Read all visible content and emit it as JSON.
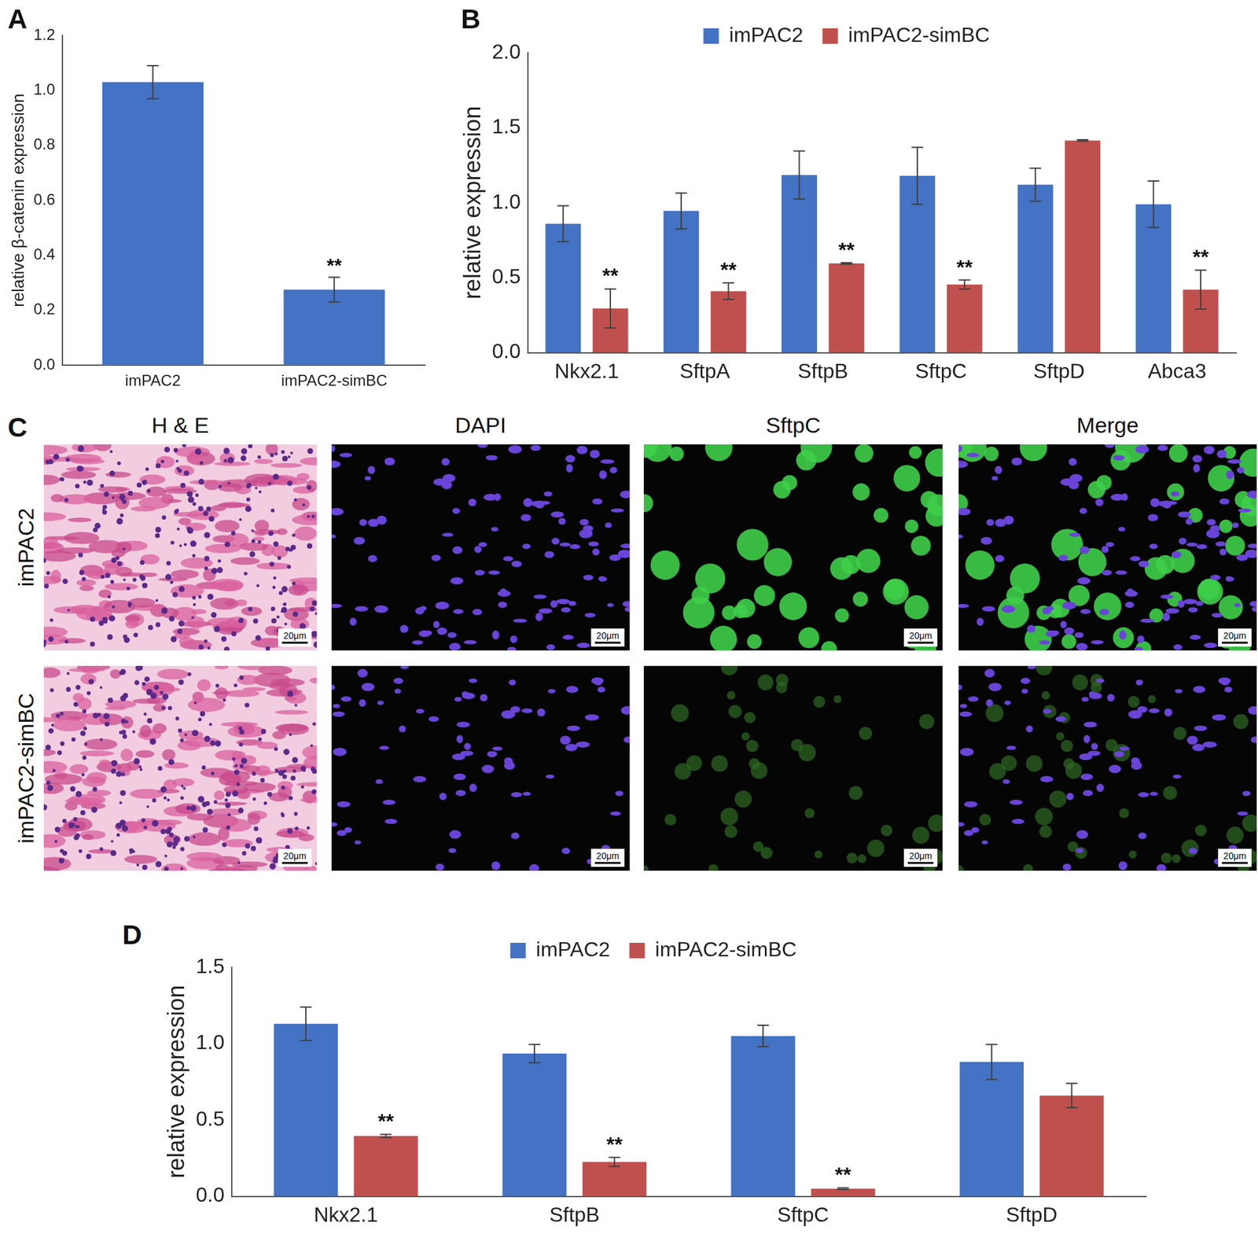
{
  "chart_data": [
    {
      "type": "bar",
      "panel_label": "A",
      "y_label": "relative β-catenin expression",
      "categories": [
        "imPAC2",
        "imPAC2-simBC"
      ],
      "values": [
        1.03,
        0.275
      ],
      "errors": [
        0.06,
        0.045
      ],
      "significance": [
        null,
        "**"
      ],
      "color": "#4472c4",
      "ylim": [
        0,
        1.2
      ],
      "yticks": [
        {
          "value": 0,
          "label": "0.0"
        },
        0.2,
        0.4,
        0.6,
        0.8,
        {
          "value": 1,
          "label": "1.0"
        },
        1.2
      ],
      "grid": false
    },
    {
      "type": "bar",
      "panel_label": "B",
      "y_label": "relative expression",
      "categories": [
        "Nkx2.1",
        "SftpA",
        "SftpB",
        "SftpC",
        "SftpD",
        "Abca3"
      ],
      "series": [
        {
          "name": "imPAC2",
          "color": "#4472c4",
          "values": [
            0.86,
            0.945,
            1.185,
            1.18,
            1.12,
            0.99
          ],
          "errors": [
            0.12,
            0.12,
            0.16,
            0.19,
            0.11,
            0.155
          ]
        },
        {
          "name": "imPAC2-simBC",
          "color": "#c0504d",
          "values": [
            0.295,
            0.41,
            0.595,
            0.455,
            1.415,
            0.42
          ],
          "errors": [
            0.13,
            0.055,
            0.005,
            0.03,
            0.005,
            0.13
          ],
          "significance": [
            "**",
            "**",
            "**",
            "**",
            null,
            "**"
          ]
        }
      ],
      "ylim": [
        0,
        2
      ],
      "yticks": [
        {
          "value": 0,
          "label": "0.0"
        },
        0.5,
        {
          "value": 1,
          "label": "1.0"
        },
        1.5,
        {
          "value": 2,
          "label": "2.0"
        }
      ],
      "grid": false,
      "legend": "top"
    },
    {
      "type": "bar",
      "panel_label": "D",
      "y_label": "relative expression",
      "categories": [
        "Nkx2.1",
        "SftpB",
        "SftpC",
        "SftpD"
      ],
      "series": [
        {
          "name": "imPAC2",
          "color": "#4472c4",
          "values": [
            1.13,
            0.935,
            1.05,
            0.88
          ],
          "errors": [
            0.11,
            0.06,
            0.07,
            0.115
          ]
        },
        {
          "name": "imPAC2-simBC",
          "color": "#c0504d",
          "values": [
            0.395,
            0.225,
            0.05,
            0.66
          ],
          "errors": [
            0.01,
            0.03,
            0.005,
            0.08
          ],
          "significance": [
            "**",
            "**",
            "**",
            null
          ]
        }
      ],
      "ylim": [
        0,
        1.5
      ],
      "yticks": [
        {
          "value": 0,
          "label": "0.0"
        },
        0.5,
        {
          "value": 1,
          "label": "1.0"
        },
        1.5
      ],
      "grid": false,
      "legend": "top"
    }
  ],
  "image_panel": {
    "panel_label": "C",
    "columns": [
      "H & E",
      "DAPI",
      "SftpC",
      "Merge"
    ],
    "rows": [
      "imPAC2",
      "imPAC2-simBC"
    ],
    "scale_bar": "20μm"
  }
}
